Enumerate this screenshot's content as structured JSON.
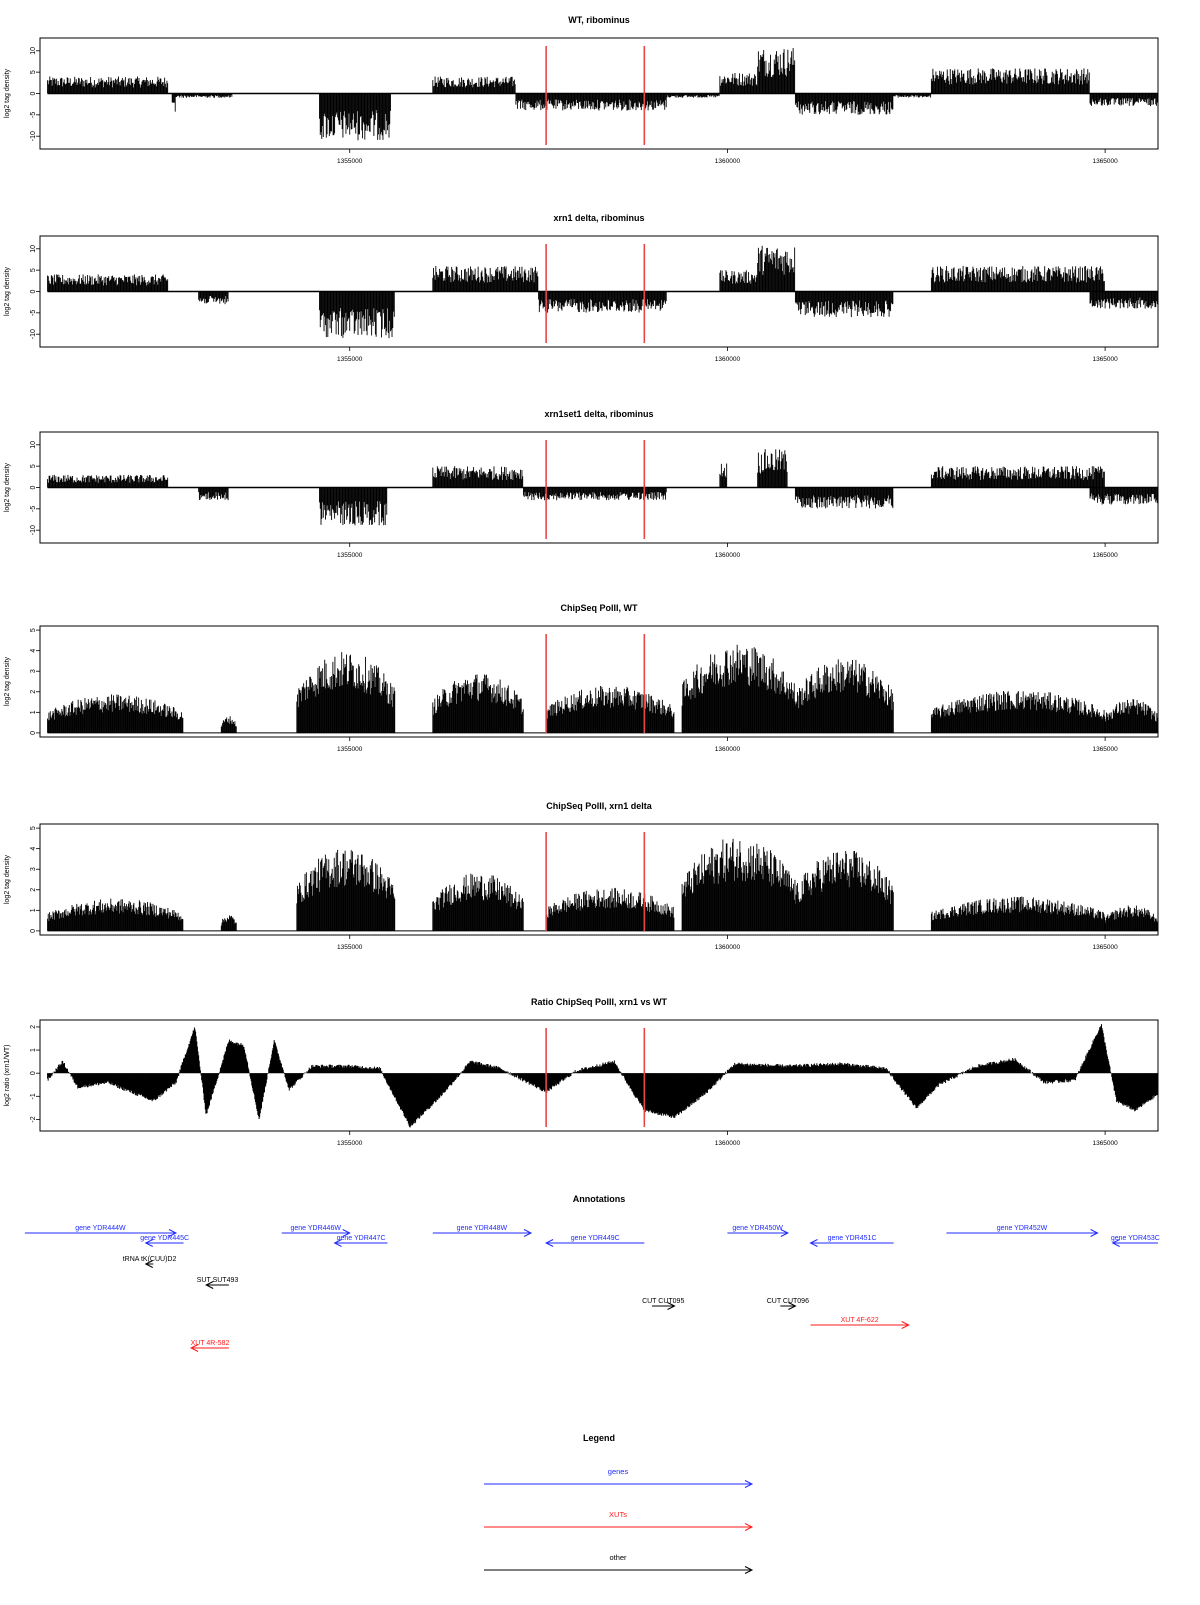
{
  "chart_data": {
    "type": "genome-track-panels",
    "coordinate_axis": {
      "xlim": [
        1350900,
        1365700
      ],
      "ticks": [
        1355000,
        1360000,
        1365000
      ],
      "tick_labels": [
        "1355000",
        "1360000",
        "1365000"
      ]
    },
    "markers": {
      "color": "#e8474a",
      "x": [
        1357600,
        1358900
      ]
    },
    "panels": [
      {
        "kind": "stranded",
        "title": "WT, ribominus",
        "ylabel": "log2 tag density",
        "ylim": [
          -13,
          13
        ],
        "yticks": [
          -10,
          -5,
          0,
          5,
          10
        ],
        "ytick_labels": [
          "-10",
          "-5",
          "0",
          "5",
          "10"
        ],
        "segments": [
          {
            "start": 1351000,
            "end": 1352600,
            "strand": "+",
            "level": 4
          },
          {
            "start": 1352650,
            "end": 1352700,
            "strand": "-",
            "level": 5
          },
          {
            "start": 1352700,
            "end": 1353450,
            "strand": "-",
            "level": 1
          },
          {
            "start": 1354600,
            "end": 1355550,
            "strand": "-",
            "level": 11
          },
          {
            "start": 1356100,
            "end": 1357200,
            "strand": "+",
            "level": 4
          },
          {
            "start": 1357200,
            "end": 1359200,
            "strand": "-",
            "level": 4
          },
          {
            "start": 1359200,
            "end": 1359900,
            "strand": "-",
            "level": 1
          },
          {
            "start": 1359900,
            "end": 1360400,
            "strand": "+",
            "level": 5
          },
          {
            "start": 1360400,
            "end": 1360900,
            "strand": "+",
            "level": 11
          },
          {
            "start": 1360900,
            "end": 1362200,
            "strand": "-",
            "level": 5
          },
          {
            "start": 1362200,
            "end": 1362700,
            "strand": "-",
            "level": 1
          },
          {
            "start": 1362700,
            "end": 1364800,
            "strand": "+",
            "level": 6
          },
          {
            "start": 1364800,
            "end": 1365700,
            "strand": "-",
            "level": 3
          }
        ]
      },
      {
        "kind": "stranded",
        "title": "xrn1 delta, ribominus",
        "ylabel": "log2 tag density",
        "ylim": [
          -13,
          13
        ],
        "yticks": [
          -10,
          -5,
          0,
          5,
          10
        ],
        "ytick_labels": [
          "-10",
          "-5",
          "0",
          "5",
          "10"
        ],
        "segments": [
          {
            "start": 1351000,
            "end": 1352600,
            "strand": "+",
            "level": 4
          },
          {
            "start": 1353000,
            "end": 1353400,
            "strand": "-",
            "level": 3
          },
          {
            "start": 1354600,
            "end": 1355600,
            "strand": "-",
            "level": 11
          },
          {
            "start": 1356100,
            "end": 1357500,
            "strand": "+",
            "level": 6
          },
          {
            "start": 1357500,
            "end": 1359200,
            "strand": "-",
            "level": 5
          },
          {
            "start": 1359900,
            "end": 1360400,
            "strand": "+",
            "level": 5
          },
          {
            "start": 1360400,
            "end": 1360900,
            "strand": "+",
            "level": 11
          },
          {
            "start": 1360900,
            "end": 1362200,
            "strand": "-",
            "level": 6
          },
          {
            "start": 1362700,
            "end": 1365000,
            "strand": "+",
            "level": 6
          },
          {
            "start": 1364800,
            "end": 1365700,
            "strand": "-",
            "level": 4
          }
        ]
      },
      {
        "kind": "stranded",
        "title": "xrn1set1 delta, ribominus",
        "ylabel": "log2 tag density",
        "ylim": [
          -13,
          13
        ],
        "yticks": [
          -10,
          -5,
          0,
          5,
          10
        ],
        "ytick_labels": [
          "-10",
          "-5",
          "0",
          "5",
          "10"
        ],
        "segments": [
          {
            "start": 1351000,
            "end": 1352600,
            "strand": "+",
            "level": 3
          },
          {
            "start": 1353000,
            "end": 1353400,
            "strand": "-",
            "level": 3
          },
          {
            "start": 1354600,
            "end": 1355500,
            "strand": "-",
            "level": 9
          },
          {
            "start": 1356100,
            "end": 1357300,
            "strand": "+",
            "level": 5
          },
          {
            "start": 1357300,
            "end": 1359200,
            "strand": "-",
            "level": 3
          },
          {
            "start": 1359900,
            "end": 1360000,
            "strand": "+",
            "level": 6
          },
          {
            "start": 1360400,
            "end": 1360800,
            "strand": "+",
            "level": 9
          },
          {
            "start": 1360900,
            "end": 1362200,
            "strand": "-",
            "level": 5
          },
          {
            "start": 1362700,
            "end": 1365000,
            "strand": "+",
            "level": 5
          },
          {
            "start": 1364800,
            "end": 1365700,
            "strand": "-",
            "level": 4
          }
        ]
      },
      {
        "kind": "density",
        "title": "ChipSeq PolII, WT",
        "ylabel": "log2 tag density",
        "ylim": [
          -0.2,
          5.2
        ],
        "yticks": [
          0,
          1,
          2,
          3,
          4,
          5
        ],
        "ytick_labels": [
          "0",
          "1",
          "2",
          "3",
          "4",
          "5"
        ],
        "segments": [
          {
            "start": 1351000,
            "end": 1352800,
            "level": 1.8
          },
          {
            "start": 1353300,
            "end": 1353500,
            "level": 0.8
          },
          {
            "start": 1354300,
            "end": 1355600,
            "level": 3.8
          },
          {
            "start": 1356100,
            "end": 1357300,
            "level": 2.8
          },
          {
            "start": 1357600,
            "end": 1359300,
            "level": 2.2
          },
          {
            "start": 1359400,
            "end": 1360900,
            "level": 4.2
          },
          {
            "start": 1360900,
            "end": 1362200,
            "level": 3.5
          },
          {
            "start": 1362700,
            "end": 1365000,
            "level": 2.0
          },
          {
            "start": 1365000,
            "end": 1365700,
            "level": 1.6
          }
        ]
      },
      {
        "kind": "density",
        "title": "ChipSeq PolII, xrn1 delta",
        "ylabel": "log2 tag density",
        "ylim": [
          -0.2,
          5.2
        ],
        "yticks": [
          0,
          1,
          2,
          3,
          4,
          5
        ],
        "ytick_labels": [
          "0",
          "1",
          "2",
          "3",
          "4",
          "5"
        ],
        "segments": [
          {
            "start": 1351000,
            "end": 1352800,
            "level": 1.5
          },
          {
            "start": 1353300,
            "end": 1353500,
            "level": 0.8
          },
          {
            "start": 1354300,
            "end": 1355600,
            "level": 3.9
          },
          {
            "start": 1356100,
            "end": 1357300,
            "level": 2.7
          },
          {
            "start": 1357600,
            "end": 1359300,
            "level": 2.0
          },
          {
            "start": 1359400,
            "end": 1360900,
            "level": 4.4
          },
          {
            "start": 1360900,
            "end": 1362200,
            "level": 3.8
          },
          {
            "start": 1362700,
            "end": 1365000,
            "level": 1.6
          },
          {
            "start": 1365000,
            "end": 1365700,
            "level": 1.2
          }
        ]
      },
      {
        "kind": "ratio",
        "title": "Ratio ChipSeq PolII, xrn1 vs WT",
        "ylabel": "log2 ratio (xrn1/WT)",
        "ylim": [
          -2.5,
          2.3
        ],
        "yticks": [
          -2,
          -1,
          0,
          1,
          2
        ],
        "ytick_labels": [
          "-2",
          "-1",
          "0",
          "1",
          "2"
        ],
        "points": [
          [
            1351000,
            -0.3
          ],
          [
            1351200,
            0.5
          ],
          [
            1351400,
            -0.6
          ],
          [
            1351800,
            -0.4
          ],
          [
            1352400,
            -1.2
          ],
          [
            1352700,
            -0.4
          ],
          [
            1352950,
            2.0
          ],
          [
            1353100,
            -1.8
          ],
          [
            1353400,
            1.4
          ],
          [
            1353600,
            1.2
          ],
          [
            1353800,
            -2.0
          ],
          [
            1354000,
            1.4
          ],
          [
            1354200,
            -0.7
          ],
          [
            1354500,
            0.3
          ],
          [
            1355000,
            0.3
          ],
          [
            1355400,
            0.2
          ],
          [
            1355800,
            -2.3
          ],
          [
            1356200,
            -1.0
          ],
          [
            1356600,
            0.5
          ],
          [
            1357000,
            0.2
          ],
          [
            1357600,
            -0.8
          ],
          [
            1358000,
            0.1
          ],
          [
            1358500,
            0.5
          ],
          [
            1358900,
            -1.6
          ],
          [
            1359300,
            -1.9
          ],
          [
            1359700,
            -0.9
          ],
          [
            1360100,
            0.4
          ],
          [
            1360800,
            0.3
          ],
          [
            1361500,
            0.4
          ],
          [
            1362100,
            0.2
          ],
          [
            1362500,
            -1.5
          ],
          [
            1362800,
            -0.5
          ],
          [
            1363300,
            0.3
          ],
          [
            1363800,
            0.6
          ],
          [
            1364200,
            -0.4
          ],
          [
            1364600,
            -0.3
          ],
          [
            1364950,
            2.1
          ],
          [
            1365150,
            -1.2
          ],
          [
            1365400,
            -1.6
          ],
          [
            1365700,
            -0.9
          ]
        ]
      }
    ],
    "annotations": {
      "title": "Annotations",
      "features": [
        {
          "label": "gene YDR444W",
          "start": 1350700,
          "end": 1352700,
          "strand": "+",
          "class": "gene",
          "row": 0
        },
        {
          "label": "gene YDR445C",
          "start": 1352300,
          "end": 1352800,
          "strand": "-",
          "class": "gene",
          "row": 1
        },
        {
          "label": "gene YDR446W",
          "start": 1354100,
          "end": 1355000,
          "strand": "+",
          "class": "gene",
          "row": 0
        },
        {
          "label": "gene YDR447C",
          "start": 1354800,
          "end": 1355500,
          "strand": "-",
          "class": "gene",
          "row": 1
        },
        {
          "label": "gene YDR448W",
          "start": 1356100,
          "end": 1357400,
          "strand": "+",
          "class": "gene",
          "row": 0
        },
        {
          "label": "gene YDR449C",
          "start": 1357600,
          "end": 1358900,
          "strand": "-",
          "class": "gene",
          "row": 1
        },
        {
          "label": "gene YDR450W",
          "start": 1360000,
          "end": 1360800,
          "strand": "+",
          "class": "gene",
          "row": 0
        },
        {
          "label": "gene YDR451C",
          "start": 1361100,
          "end": 1362200,
          "strand": "-",
          "class": "gene",
          "row": 1
        },
        {
          "label": "gene YDR452W",
          "start": 1362900,
          "end": 1364900,
          "strand": "+",
          "class": "gene",
          "row": 0
        },
        {
          "label": "gene YDR453C",
          "start": 1365100,
          "end": 1365700,
          "strand": "-",
          "class": "gene",
          "row": 1
        },
        {
          "label": "tRNA tK(CUU)D2",
          "start": 1352300,
          "end": 1352400,
          "strand": "-",
          "class": "other",
          "row": 2
        },
        {
          "label": "SUT SUT493",
          "start": 1353100,
          "end": 1353400,
          "strand": "-",
          "class": "other",
          "row": 3
        },
        {
          "label": "CUT CUT095",
          "start": 1359000,
          "end": 1359300,
          "strand": "+",
          "class": "other",
          "row": 4
        },
        {
          "label": "CUT CUT096",
          "start": 1360700,
          "end": 1360900,
          "strand": "+",
          "class": "other",
          "row": 4
        },
        {
          "label": "XUT 4R-582",
          "start": 1352900,
          "end": 1353400,
          "strand": "-",
          "class": "xut",
          "row": 6
        },
        {
          "label": "XUT 4F-622",
          "start": 1361100,
          "end": 1362400,
          "strand": "+",
          "class": "xut",
          "row": 5
        }
      ]
    },
    "legend": {
      "title": "Legend",
      "entries": [
        {
          "label": "genes",
          "color": "#1f2bff"
        },
        {
          "label": "XUTs",
          "color": "#ff1a1a"
        },
        {
          "label": "other",
          "color": "#000000"
        }
      ]
    }
  }
}
